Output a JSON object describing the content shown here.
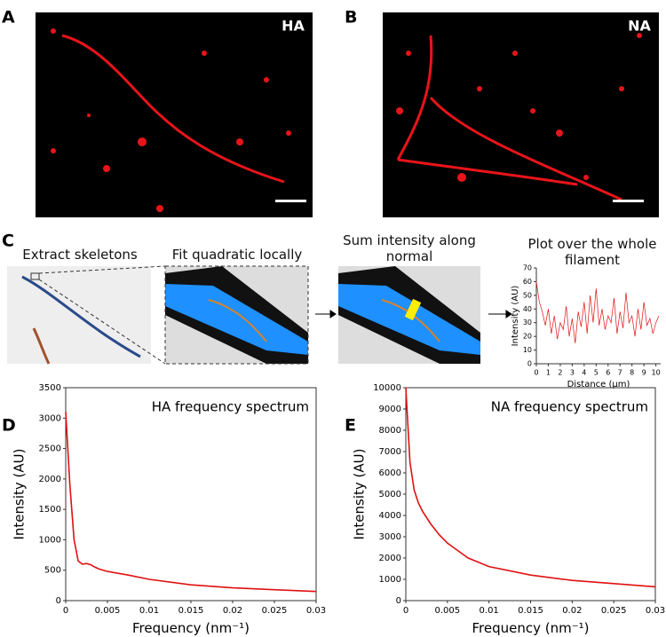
{
  "panels": {
    "a": {
      "label": "A",
      "tag": "HA"
    },
    "b": {
      "label": "B",
      "tag": "NA"
    },
    "c": {
      "label": "C",
      "steps": [
        "Extract skeletons",
        "Fit quadratic locally",
        "Sum intensity along normal"
      ]
    },
    "d": {
      "label": "D"
    },
    "e": {
      "label": "E"
    }
  },
  "chart_data": [
    {
      "type": "line",
      "title": "Plot over the whole filament",
      "xlabel": "Distance (μm)",
      "ylabel": "Intensity (AU)",
      "color": "#e01010",
      "x": [
        0,
        0.25,
        0.5,
        0.75,
        1,
        1.25,
        1.5,
        1.75,
        2,
        2.25,
        2.5,
        2.75,
        3,
        3.25,
        3.5,
        3.75,
        4,
        4.25,
        4.5,
        4.75,
        5,
        5.25,
        5.5,
        5.75,
        6,
        6.25,
        6.5,
        6.75,
        7,
        7.25,
        7.5,
        7.75,
        8,
        8.25,
        8.5,
        8.75,
        9,
        9.25,
        9.5,
        9.75,
        10,
        10.25
      ],
      "values": [
        60,
        45,
        38,
        28,
        40,
        22,
        35,
        18,
        30,
        25,
        42,
        20,
        33,
        15,
        38,
        27,
        45,
        22,
        50,
        30,
        55,
        28,
        40,
        25,
        35,
        30,
        48,
        22,
        38,
        26,
        52,
        30,
        35,
        20,
        40,
        25,
        45,
        28,
        33,
        22,
        30,
        35
      ],
      "xlim": [
        0,
        10.4
      ],
      "xticks": [
        0,
        1,
        2,
        3,
        4,
        5,
        6,
        7,
        8,
        9,
        10
      ],
      "ylim": [
        0,
        70
      ],
      "yticks": [
        0,
        10,
        20,
        30,
        40,
        50,
        60,
        70
      ]
    },
    {
      "type": "line",
      "title": "HA frequency spectrum",
      "xlabel": "Frequency (nm⁻¹)",
      "ylabel": "Intensity (AU)",
      "color": "#e01010",
      "x": [
        0,
        0.0005,
        0.001,
        0.0015,
        0.002,
        0.0025,
        0.003,
        0.0035,
        0.004,
        0.005,
        0.0075,
        0.01,
        0.015,
        0.02,
        0.025,
        0.03
      ],
      "values": [
        3100,
        1900,
        1000,
        650,
        600,
        610,
        590,
        550,
        520,
        480,
        420,
        350,
        260,
        210,
        180,
        150
      ],
      "xlim": [
        0,
        0.03
      ],
      "xticks": [
        0,
        0.005,
        0.01,
        0.015,
        0.02,
        0.025,
        0.03
      ],
      "ylim": [
        0,
        3500
      ],
      "yticks": [
        0,
        500,
        1000,
        1500,
        2000,
        2500,
        3000,
        3500
      ]
    },
    {
      "type": "line",
      "title": "NA frequency spectrum",
      "xlabel": "Frequency (nm⁻¹)",
      "ylabel": "Intensity (AU)",
      "color": "#e01010",
      "x": [
        0,
        0.0005,
        0.001,
        0.0015,
        0.002,
        0.003,
        0.004,
        0.005,
        0.0075,
        0.01,
        0.015,
        0.02,
        0.025,
        0.03
      ],
      "values": [
        10000,
        6500,
        5200,
        4600,
        4200,
        3600,
        3100,
        2700,
        2000,
        1600,
        1200,
        950,
        800,
        650
      ],
      "xlim": [
        0,
        0.03
      ],
      "xticks": [
        0,
        0.005,
        0.01,
        0.015,
        0.02,
        0.025,
        0.03
      ],
      "ylim": [
        0,
        10000
      ],
      "yticks": [
        0,
        1000,
        2000,
        3000,
        4000,
        5000,
        6000,
        7000,
        8000,
        9000,
        10000
      ]
    }
  ]
}
